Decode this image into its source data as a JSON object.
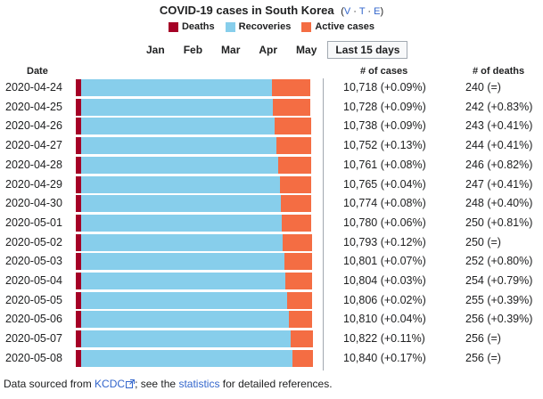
{
  "header": {
    "title": "COVID-19 cases in South Korea",
    "vte_open": "(",
    "v": "V",
    "t": "T",
    "e": "E",
    "sep": "·",
    "vte_close": ")"
  },
  "legend": [
    {
      "label": "Deaths",
      "color": "#a50026"
    },
    {
      "label": "Recoveries",
      "color": "#87ceeb"
    },
    {
      "label": "Active cases",
      "color": "#f46d43"
    }
  ],
  "months": [
    "Jan",
    "Feb",
    "Mar",
    "Apr",
    "May",
    "Last 15 days"
  ],
  "active_month": "Last 15 days",
  "columns": {
    "date": "Date",
    "cases": "# of cases",
    "deaths": "# of deaths"
  },
  "chart_data": {
    "type": "bar",
    "stacked": true,
    "orientation": "horizontal",
    "title": "COVID-19 cases in South Korea",
    "categories": [
      "2020-04-24",
      "2020-04-25",
      "2020-04-26",
      "2020-04-27",
      "2020-04-28",
      "2020-04-29",
      "2020-04-30",
      "2020-05-01",
      "2020-05-02",
      "2020-05-03",
      "2020-05-04",
      "2020-05-05",
      "2020-05-06",
      "2020-05-07",
      "2020-05-08"
    ],
    "series": [
      {
        "name": "Deaths",
        "color": "#a50026",
        "values": [
          240,
          242,
          243,
          244,
          246,
          247,
          248,
          250,
          250,
          252,
          254,
          255,
          256,
          256,
          256
        ]
      },
      {
        "name": "Recoveries",
        "color": "#87ceeb",
        "values": [
          8717,
          8764,
          8854,
          8922,
          9021,
          9072,
          9123,
          9183,
          9217,
          9283,
          9333,
          9419,
          9484,
          9568,
          9632
        ]
      },
      {
        "name": "Active cases",
        "color": "#f46d43",
        "values": [
          1761,
          1722,
          1641,
          1586,
          1494,
          1446,
          1403,
          1347,
          1326,
          1266,
          1217,
          1132,
          1070,
          998,
          952
        ]
      }
    ],
    "cases_text": [
      "10,718 (+0.09%)",
      "10,728 (+0.09%)",
      "10,738 (+0.09%)",
      "10,752 (+0.13%)",
      "10,761 (+0.08%)",
      "10,765 (+0.04%)",
      "10,774 (+0.08%)",
      "10,780 (+0.06%)",
      "10,793 (+0.12%)",
      "10,801 (+0.07%)",
      "10,804 (+0.03%)",
      "10,806 (+0.02%)",
      "10,810 (+0.04%)",
      "10,822 (+0.11%)",
      "10,840 (+0.17%)"
    ],
    "deaths_text": [
      "240 (=)",
      "242 (+0.83%)",
      "243 (+0.41%)",
      "244 (+0.41%)",
      "246 (+0.82%)",
      "247 (+0.41%)",
      "248 (+0.40%)",
      "250 (+0.81%)",
      "250 (=)",
      "252 (+0.80%)",
      "254 (+0.79%)",
      "255 (+0.39%)",
      "256 (+0.39%)",
      "256 (=)",
      "256 (=)"
    ],
    "xmax": 10840
  },
  "footer": {
    "prefix": "Data sourced from ",
    "link1": "KCDC",
    "external_icon": "external-link-icon",
    "middle": "; see the ",
    "link2": "statistics",
    "suffix": " for detailed references."
  }
}
